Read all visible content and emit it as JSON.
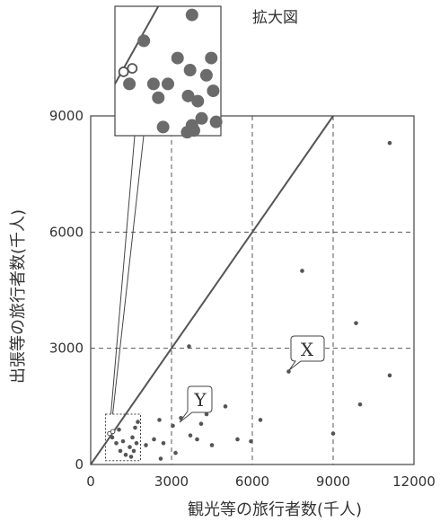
{
  "chart_data": {
    "type": "scatter",
    "xlabel": "観光等の旅行者数(千人)",
    "ylabel": "出張等の旅行者数(千人)",
    "xlim": [
      0,
      12000
    ],
    "ylim": [
      0,
      9000
    ],
    "x_ticks": [
      "0",
      "3000",
      "6000",
      "9000",
      "12000"
    ],
    "y_ticks": [
      "0",
      "3000",
      "6000",
      "9000"
    ],
    "grid": "dashed",
    "reference_line": "y = x",
    "points": [
      {
        "x": 11100,
        "y": 8300
      },
      {
        "x": 7850,
        "y": 5000
      },
      {
        "x": 9850,
        "y": 3650
      },
      {
        "x": 11100,
        "y": 2300
      },
      {
        "x": 10000,
        "y": 1550
      },
      {
        "x": 9000,
        "y": 800
      },
      {
        "x": 7350,
        "y": 2400
      },
      {
        "x": 3650,
        "y": 3050
      },
      {
        "x": 6300,
        "y": 1150
      },
      {
        "x": 5000,
        "y": 1500
      },
      {
        "x": 5450,
        "y": 650
      },
      {
        "x": 5950,
        "y": 600
      },
      {
        "x": 4300,
        "y": 1300
      },
      {
        "x": 4100,
        "y": 1050
      },
      {
        "x": 4500,
        "y": 500
      },
      {
        "x": 3950,
        "y": 650
      },
      {
        "x": 3350,
        "y": 1200
      },
      {
        "x": 3050,
        "y": 1000
      },
      {
        "x": 3700,
        "y": 750
      },
      {
        "x": 2700,
        "y": 550
      },
      {
        "x": 2350,
        "y": 650
      },
      {
        "x": 2550,
        "y": 1150
      },
      {
        "x": 3150,
        "y": 300
      },
      {
        "x": 2600,
        "y": 150
      },
      {
        "x": 2050,
        "y": 500
      },
      {
        "x": 1750,
        "y": 1100
      },
      {
        "x": 1650,
        "y": 950
      },
      {
        "x": 1550,
        "y": 700
      },
      {
        "x": 1700,
        "y": 550
      },
      {
        "x": 1450,
        "y": 450
      },
      {
        "x": 1600,
        "y": 350
      },
      {
        "x": 1300,
        "y": 250
      },
      {
        "x": 1050,
        "y": 900
      },
      {
        "x": 1200,
        "y": 600
      },
      {
        "x": 950,
        "y": 550
      },
      {
        "x": 1100,
        "y": 350
      },
      {
        "x": 1500,
        "y": 200
      },
      {
        "x": 800,
        "y": 700
      }
    ],
    "hollow_points": [
      {
        "x": 700,
        "y": 800
      },
      {
        "x": 820,
        "y": 850
      }
    ],
    "callouts": [
      "X",
      "Y"
    ],
    "inset_title": "拡大図",
    "inset_points": [
      {
        "x": 1500,
        "y": 1100
      },
      {
        "x": 1000,
        "y": 950
      },
      {
        "x": 850,
        "y": 700
      },
      {
        "x": 1350,
        "y": 850
      },
      {
        "x": 1250,
        "y": 700
      },
      {
        "x": 1100,
        "y": 700
      },
      {
        "x": 1150,
        "y": 620
      },
      {
        "x": 1700,
        "y": 850
      },
      {
        "x": 1650,
        "y": 750
      },
      {
        "x": 1480,
        "y": 780
      },
      {
        "x": 1720,
        "y": 660
      },
      {
        "x": 1460,
        "y": 630
      },
      {
        "x": 1560,
        "y": 600
      },
      {
        "x": 1600,
        "y": 500
      },
      {
        "x": 1500,
        "y": 460
      },
      {
        "x": 1750,
        "y": 480
      },
      {
        "x": 1520,
        "y": 430
      },
      {
        "x": 1450,
        "y": 420
      },
      {
        "x": 1200,
        "y": 450
      }
    ],
    "inset_hollow_points": [
      {
        "x": 790,
        "y": 770
      },
      {
        "x": 880,
        "y": 790
      }
    ]
  }
}
